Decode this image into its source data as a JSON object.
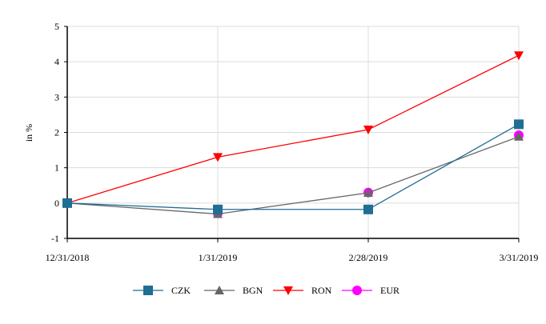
{
  "chart_data": {
    "type": "line",
    "title": "",
    "xlabel": "",
    "ylabel": "in %",
    "ylim": [
      -1,
      5
    ],
    "yticks": [
      -1,
      0,
      1,
      2,
      3,
      4,
      5
    ],
    "grid": true,
    "legend_position": "bottom",
    "categories": [
      "12/31/2018",
      "1/31/2019",
      "2/28/2019",
      "3/31/2019"
    ],
    "series": [
      {
        "name": "CZK",
        "values": [
          0,
          -0.18,
          -0.18,
          2.23
        ],
        "color": "#1f6e94",
        "marker": "square"
      },
      {
        "name": "BGN",
        "values": [
          0,
          -0.31,
          0.29,
          1.88
        ],
        "color": "#666666",
        "marker": "triangle-up"
      },
      {
        "name": "RON",
        "values": [
          0,
          1.3,
          2.08,
          4.18
        ],
        "color": "#ff0000",
        "marker": "triangle-down"
      },
      {
        "name": "EUR",
        "values": [
          0,
          -0.29,
          0.3,
          1.92
        ],
        "color": "#ff00ff",
        "marker": "circle"
      }
    ]
  }
}
